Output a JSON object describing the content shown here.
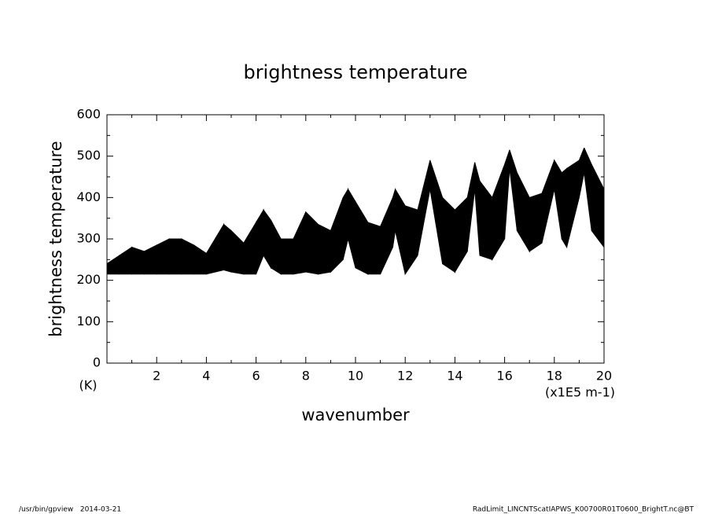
{
  "chart_data": {
    "type": "band",
    "title": "brightness temperature",
    "x_label": "wavenumber",
    "y_label": "brightness temperature",
    "y_unit": "(K)",
    "x_unit": "(x1E5 m-1)",
    "footer_left": "/usr/bin/gpview   2014-03-21",
    "footer_right": "RadLimit_LINCNTScatIAPWS_K00700R01T0600_BrightT.nc@BT",
    "color": "#000000",
    "x": [
      0,
      0.5,
      1,
      1.5,
      2,
      2.5,
      3,
      3.5,
      4,
      4.7,
      5,
      5.5,
      6,
      6.3,
      6.6,
      7,
      7.5,
      8,
      8.5,
      9,
      9.5,
      9.7,
      10,
      10.5,
      11,
      11.5,
      11.6,
      12,
      12.5,
      13,
      13.5,
      14,
      14.5,
      14.8,
      15,
      15.5,
      16,
      16.2,
      16.5,
      17,
      17.5,
      18,
      18.3,
      18.5,
      19,
      19.2,
      19.5,
      20
    ],
    "upper": [
      240,
      260,
      280,
      270,
      285,
      300,
      300,
      285,
      265,
      335,
      320,
      290,
      340,
      370,
      345,
      300,
      300,
      365,
      335,
      320,
      400,
      420,
      390,
      340,
      330,
      400,
      420,
      380,
      370,
      490,
      400,
      370,
      400,
      485,
      440,
      400,
      480,
      515,
      460,
      400,
      410,
      490,
      460,
      470,
      490,
      520,
      480,
      420
    ],
    "lower": [
      215,
      215,
      215,
      215,
      215,
      215,
      215,
      215,
      215,
      225,
      220,
      215,
      215,
      260,
      230,
      215,
      215,
      220,
      215,
      220,
      250,
      300,
      230,
      215,
      215,
      280,
      320,
      215,
      260,
      420,
      240,
      220,
      270,
      420,
      260,
      250,
      300,
      470,
      320,
      270,
      290,
      420,
      300,
      280,
      400,
      460,
      320,
      280
    ],
    "xlim": [
      0,
      20
    ],
    "ylim": [
      0,
      600
    ],
    "xticks": [
      2,
      4,
      6,
      8,
      10,
      12,
      14,
      16,
      18,
      20
    ],
    "yticks": [
      0,
      100,
      200,
      300,
      400,
      500,
      600
    ],
    "xminorticks": [
      1,
      3,
      5,
      7,
      9,
      11,
      13,
      15,
      17,
      19
    ],
    "yminorticks": [
      50,
      150,
      250,
      350,
      450,
      550
    ]
  }
}
